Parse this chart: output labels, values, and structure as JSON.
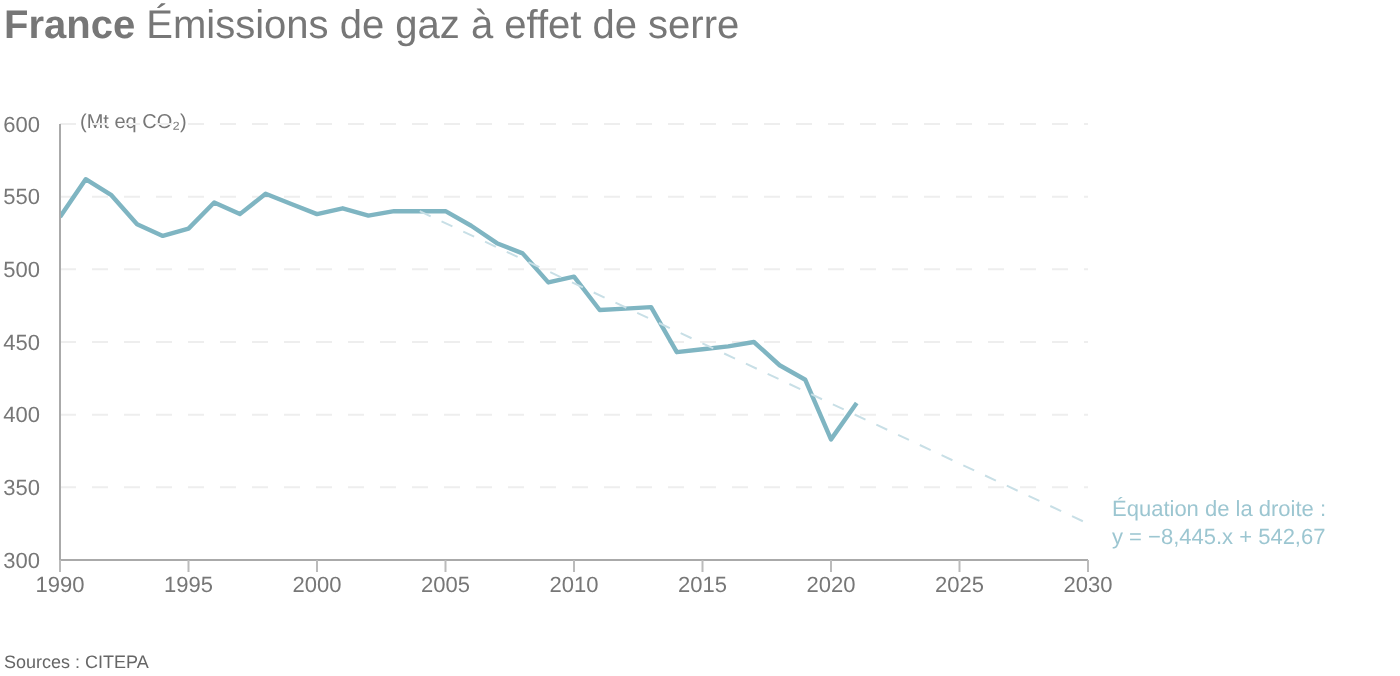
{
  "chart_data": {
    "type": "line",
    "title": "France Émissions de gaz à effet de serre",
    "ylabel": "(Mt eq CO₂)",
    "x": [
      1990,
      1991,
      1992,
      1993,
      1994,
      1995,
      1996,
      1997,
      1998,
      1999,
      2000,
      2001,
      2002,
      2003,
      2004,
      2005,
      2006,
      2007,
      2008,
      2009,
      2010,
      2011,
      2012,
      2013,
      2014,
      2015,
      2016,
      2017,
      2018,
      2019,
      2020,
      2021
    ],
    "series": [
      {
        "color": "#7fb5c2",
        "values": [
          536,
          562,
          551,
          531,
          523,
          528,
          546,
          538,
          552,
          545,
          538,
          542,
          537,
          540,
          540,
          540,
          530,
          518,
          511,
          491,
          495,
          472,
          473,
          474,
          443,
          445,
          447,
          450,
          434,
          424,
          383,
          408
        ]
      },
      {
        "type": "line",
        "x": [
          2004,
          2030
        ],
        "color": "#c8dfe6",
        "line_style": "dashed",
        "values": [
          540,
          325
        ]
      }
    ],
    "xlim": [
      1990,
      2030
    ],
    "xticks": [
      1990,
      1995,
      2000,
      2005,
      2010,
      2015,
      2020,
      2025,
      2030
    ],
    "ylim": [
      300,
      600
    ],
    "yticks": [
      300,
      350,
      400,
      450,
      500,
      550,
      600
    ],
    "grid": "y",
    "marker": "none",
    "line_style": "solid",
    "annotations": [
      "Équation de la droite :",
      "y = −8,445.x + 542,67",
      "Sources : CITEPA"
    ]
  }
}
